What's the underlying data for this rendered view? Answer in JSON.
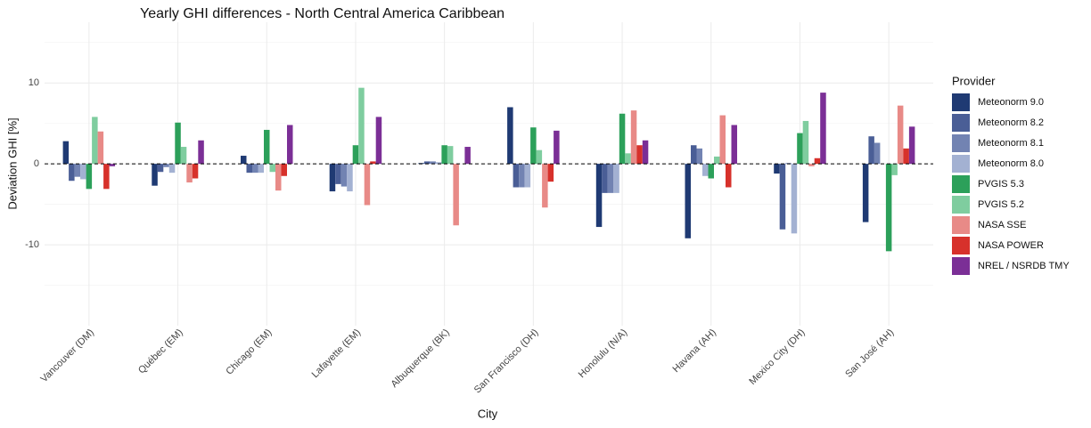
{
  "chart_data": {
    "type": "bar",
    "title": "Yearly GHI differences - North Central America Caribbean",
    "x_label": "City",
    "y_label": "Deviation GHI [%]",
    "legend_title": "Provider",
    "legend_position": "right",
    "grid": true,
    "ylim": [
      -20,
      17.5
    ],
    "yticks": [
      -10,
      0,
      10
    ],
    "minor_yticks": [
      -15,
      -5,
      5,
      15
    ],
    "reference_line": 0,
    "categories": [
      "Vancouver (DM)",
      "Québec (EM)",
      "Chicago (EM)",
      "Lafayette (EM)",
      "Albuquerque (BK)",
      "San Francisco (DH)",
      "Honolulu (N/A)",
      "Havana (AH)",
      "Mexico City (DH)",
      "San José (AH)"
    ],
    "series": [
      {
        "name": "Meteonorm 9.0",
        "color": "#1f3a73",
        "values": [
          2.8,
          -2.7,
          1.0,
          -3.4,
          0.1,
          7.0,
          -7.8,
          -9.2,
          -1.2,
          -7.2
        ]
      },
      {
        "name": "Meteonorm 8.2",
        "color": "#4a5e96",
        "values": [
          -2.1,
          -1.0,
          -1.1,
          -2.5,
          0.3,
          -2.9,
          -3.6,
          2.3,
          -8.1,
          3.4
        ]
      },
      {
        "name": "Meteonorm 8.1",
        "color": "#7283b2",
        "values": [
          -1.6,
          -0.4,
          -1.1,
          -2.8,
          0.3,
          -2.9,
          -3.6,
          1.9,
          0.1,
          2.6
        ]
      },
      {
        "name": "Meteonorm 8.0",
        "color": "#a3b1d2",
        "values": [
          -1.9,
          -1.1,
          -1.1,
          -3.4,
          0.2,
          -2.9,
          -3.6,
          -1.5,
          -8.6,
          0.0
        ]
      },
      {
        "name": "PVGIS 5.3",
        "color": "#2ca05a",
        "values": [
          -3.1,
          5.1,
          4.2,
          2.3,
          2.3,
          4.5,
          6.2,
          -1.8,
          3.8,
          -10.8
        ]
      },
      {
        "name": "PVGIS 5.2",
        "color": "#7fcd9f",
        "values": [
          5.8,
          2.1,
          -1.0,
          9.4,
          2.2,
          1.7,
          1.3,
          0.9,
          5.3,
          -1.4
        ]
      },
      {
        "name": "NASA SSE",
        "color": "#e88a87",
        "values": [
          4.0,
          -2.3,
          -3.3,
          -5.1,
          -7.6,
          -5.4,
          6.6,
          6.0,
          -0.3,
          7.2
        ]
      },
      {
        "name": "NASA POWER",
        "color": "#d7312b",
        "values": [
          -3.1,
          -1.8,
          -1.5,
          0.3,
          null,
          -2.2,
          2.3,
          -2.9,
          0.7,
          1.9
        ]
      },
      {
        "name": "NREL / NSRDB TMY",
        "color": "#7b2f96",
        "values": [
          -0.3,
          2.9,
          4.8,
          5.8,
          2.1,
          4.1,
          2.9,
          4.8,
          8.8,
          4.6
        ]
      }
    ]
  }
}
